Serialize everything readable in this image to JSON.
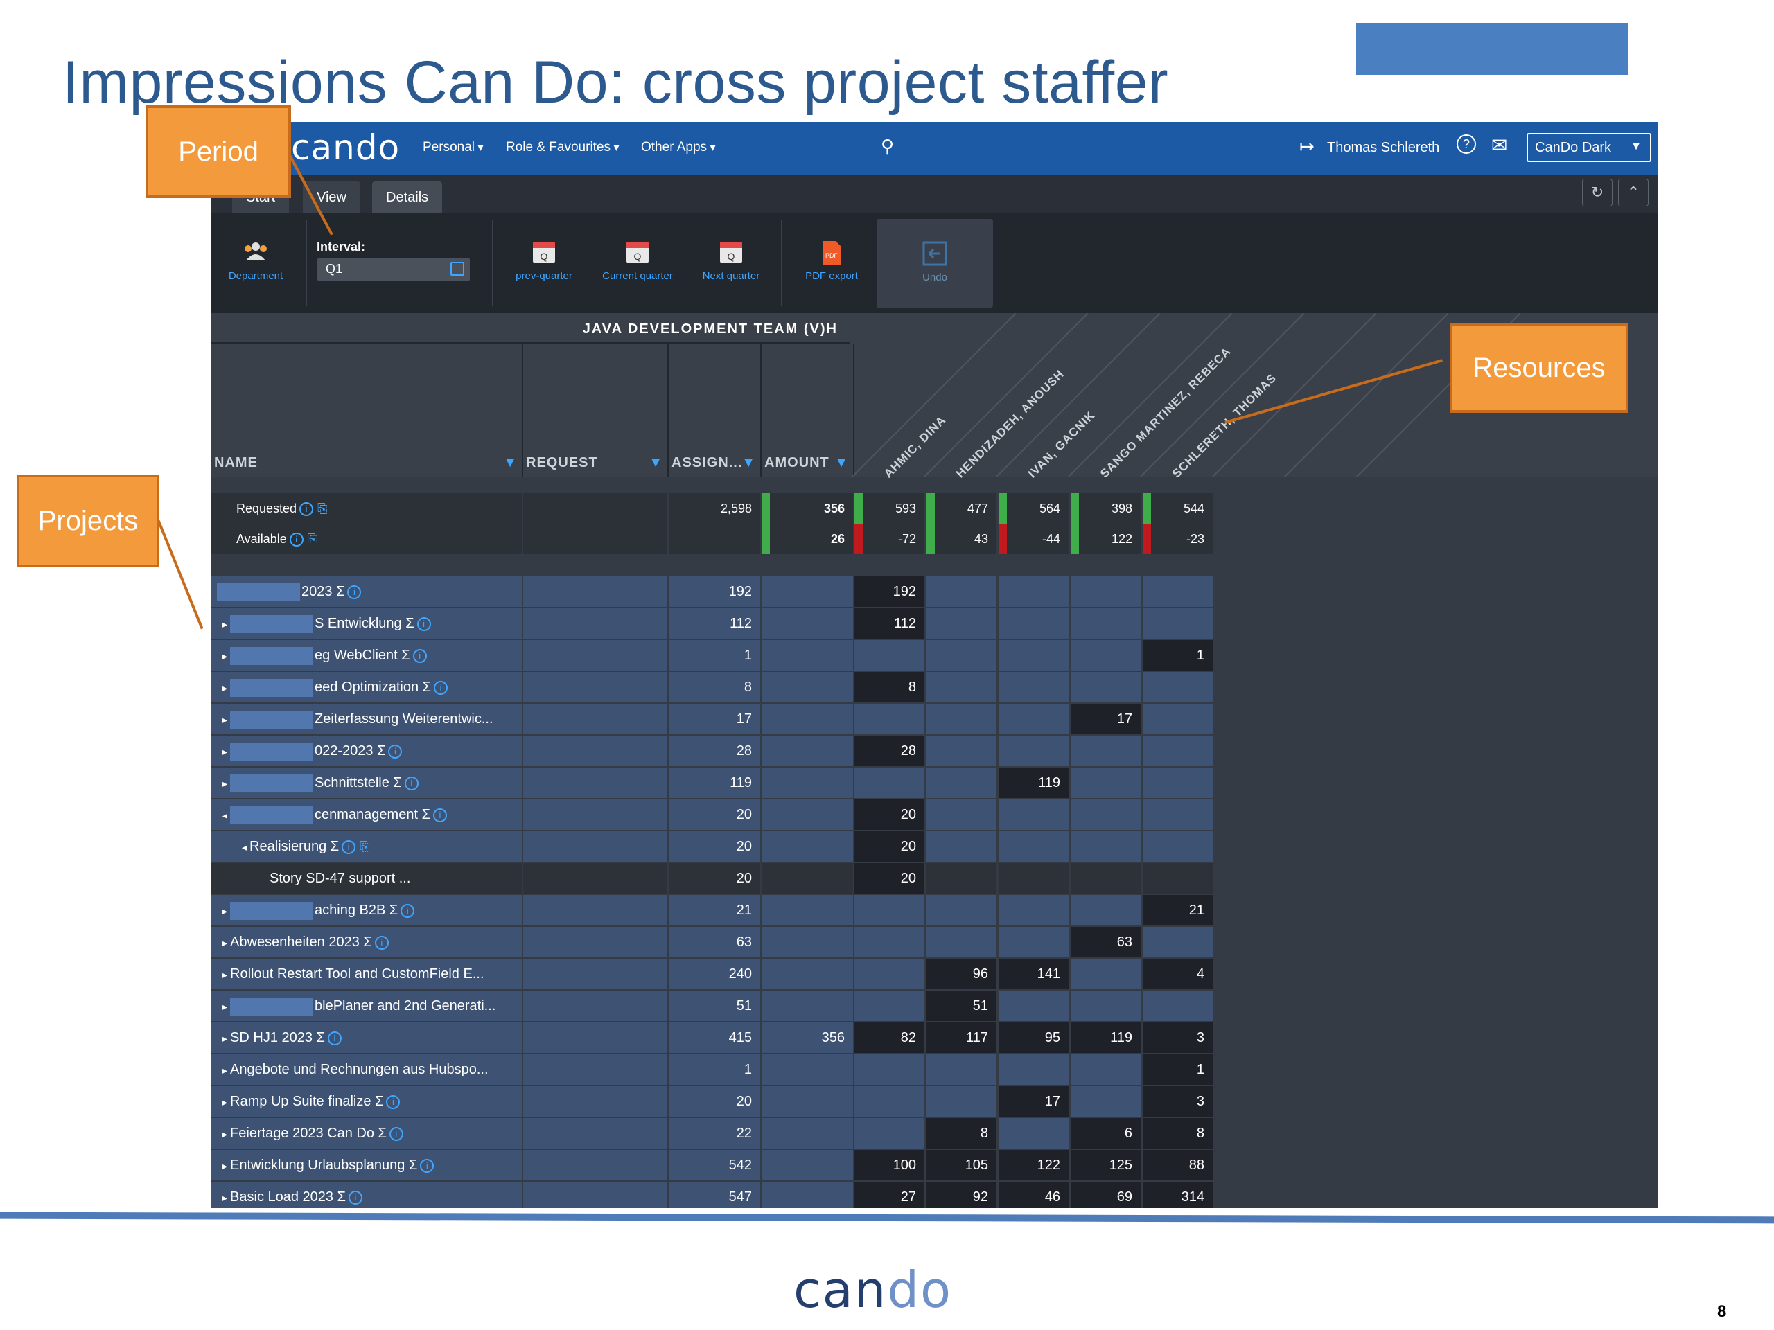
{
  "slide": {
    "title": "Impressions Can Do: cross project staffer",
    "page_number": "8",
    "footer_logo_a": "can",
    "footer_logo_b": "do"
  },
  "callouts": {
    "period": "Period",
    "resources": "Resources",
    "projects": "Projects"
  },
  "app": {
    "logo": "cando",
    "nav": [
      "Personal",
      "Role & Favourites",
      "Other Apps"
    ],
    "user": "Thomas Schlereth",
    "theme": "CanDo Dark",
    "tabs": [
      "Start",
      "View",
      "Details"
    ],
    "toolbar": {
      "department": "Department",
      "interval_label": "Interval:",
      "interval_value": "Q1",
      "prev_quarter": "prev-quarter",
      "current_quarter": "Current quarter",
      "next_quarter": "Next quarter",
      "pdf_export": "PDF export",
      "undo": "Undo"
    },
    "team_title": "JAVA DEVELOPMENT TEAM (V)H",
    "columns": [
      "NAME",
      "REQUEST",
      "ASSIGN...",
      "AMOUNT"
    ],
    "resources": [
      "AHMIC, DINA",
      "HENDIZADEH, ANOUSH",
      "IVAN, GACNIK",
      "SANGO MARTINEZ, REBECA",
      "SCHLERETH, THOMAS"
    ],
    "summary": [
      {
        "label": "Requested",
        "assign": "2,598",
        "amount": "356",
        "res": [
          "593",
          "477",
          "564",
          "398",
          "544"
        ]
      },
      {
        "label": "Available",
        "assign": "",
        "amount": "26",
        "res": [
          "-72",
          "43",
          "-44",
          "122",
          "-23"
        ]
      }
    ],
    "rows": [
      {
        "name": "2023 Σ",
        "assign": "192",
        "amount": "",
        "res": [
          "192",
          "",
          "",
          "",
          ""
        ],
        "prefix": "",
        "blur": true
      },
      {
        "name": "S Entwicklung Σ",
        "assign": "112",
        "amount": "",
        "res": [
          "112",
          "",
          "",
          "",
          ""
        ],
        "prefix": "▸",
        "blur": true
      },
      {
        "name": "eg WebClient Σ",
        "assign": "1",
        "amount": "",
        "res": [
          "",
          "",
          "",
          "",
          "1"
        ],
        "prefix": "▸",
        "blur": true
      },
      {
        "name": "eed Optimization Σ",
        "assign": "8",
        "amount": "",
        "res": [
          "8",
          "",
          "",
          "",
          ""
        ],
        "prefix": "▸",
        "blur": true
      },
      {
        "name": "Zeiterfassung Weiterentwic...",
        "assign": "17",
        "amount": "",
        "res": [
          "",
          "",
          "",
          "17",
          ""
        ],
        "prefix": "▸",
        "blur": true
      },
      {
        "name": "022-2023 Σ",
        "assign": "28",
        "amount": "",
        "res": [
          "28",
          "",
          "",
          "",
          ""
        ],
        "prefix": "▸",
        "blur": true
      },
      {
        "name": "Schnittstelle Σ",
        "assign": "119",
        "amount": "",
        "res": [
          "",
          "",
          "119",
          "",
          ""
        ],
        "prefix": "▸",
        "blur": true
      },
      {
        "name": "cenmanagement Σ",
        "assign": "20",
        "amount": "",
        "res": [
          "20",
          "",
          "",
          "",
          ""
        ],
        "prefix": "◂",
        "blur": true
      },
      {
        "name": "Realisierung Σ",
        "assign": "20",
        "amount": "",
        "res": [
          "20",
          "",
          "",
          "",
          ""
        ],
        "prefix": "◂",
        "blur": false
      },
      {
        "name": "Story SD-47 support ...",
        "assign": "20",
        "amount": "",
        "res": [
          "20",
          "",
          "",
          "",
          ""
        ],
        "prefix": "",
        "blur": false
      },
      {
        "name": "aching B2B Σ",
        "assign": "21",
        "amount": "",
        "res": [
          "",
          "",
          "",
          "",
          "21"
        ],
        "prefix": "▸",
        "blur": true
      },
      {
        "name": "Abwesenheiten 2023 Σ",
        "assign": "63",
        "amount": "",
        "res": [
          "",
          "",
          "",
          "63",
          ""
        ],
        "prefix": "▸",
        "blur": false
      },
      {
        "name": "Rollout Restart Tool and CustomField E...",
        "assign": "240",
        "amount": "",
        "res": [
          "",
          "96",
          "141",
          "",
          "4"
        ],
        "prefix": "▸",
        "blur": false
      },
      {
        "name": "blePlaner and 2nd Generati...",
        "assign": "51",
        "amount": "",
        "res": [
          "",
          "51",
          "",
          "",
          ""
        ],
        "prefix": "▸",
        "blur": true
      },
      {
        "name": "SD HJ1 2023 Σ",
        "assign": "415",
        "amount": "356",
        "res": [
          "82",
          "117",
          "95",
          "119",
          "3"
        ],
        "prefix": "▸",
        "blur": false
      },
      {
        "name": "Angebote und Rechnungen aus Hubspo...",
        "assign": "1",
        "amount": "",
        "res": [
          "",
          "",
          "",
          "",
          "1"
        ],
        "prefix": "▸",
        "blur": false
      },
      {
        "name": "Ramp Up Suite finalize Σ",
        "assign": "20",
        "amount": "",
        "res": [
          "",
          "",
          "17",
          "",
          "3"
        ],
        "prefix": "▸",
        "blur": false
      },
      {
        "name": "Feiertage 2023 Can Do Σ",
        "assign": "22",
        "amount": "",
        "res": [
          "",
          "8",
          "",
          "6",
          "8"
        ],
        "prefix": "▸",
        "blur": false
      },
      {
        "name": "Entwicklung Urlaubsplanung Σ",
        "assign": "542",
        "amount": "",
        "res": [
          "100",
          "105",
          "122",
          "125",
          "88"
        ],
        "prefix": "▸",
        "blur": false
      },
      {
        "name": "Basic Load 2023 Σ",
        "assign": "547",
        "amount": "",
        "res": [
          "27",
          "92",
          "46",
          "69",
          "314"
        ],
        "prefix": "▸",
        "blur": false
      }
    ],
    "colors": {
      "topbar": "#1c5aa6",
      "accent": "#3ea6ff",
      "row": "#3e5273",
      "positive": "#3fae4a",
      "negative": "#c0191e"
    }
  }
}
